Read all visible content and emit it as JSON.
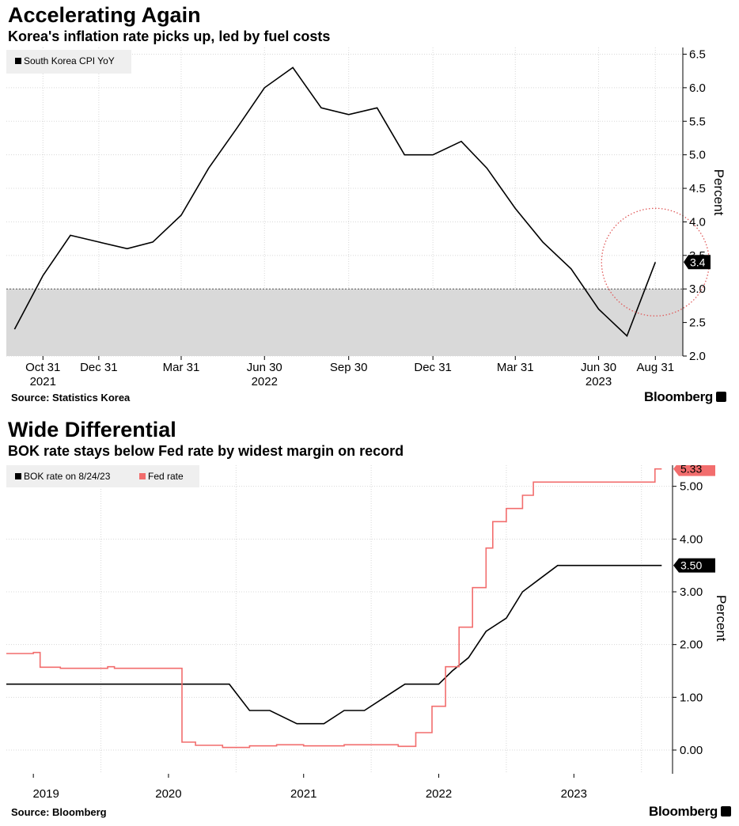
{
  "charts": [
    {
      "title": "Accelerating Again",
      "subtitle": "Korea's inflation rate picks up, led by fuel costs",
      "source": "Source: Statistics Korea",
      "brand": "Bloomberg",
      "ylabel": "Percent",
      "last_value_label": "3.4"
    },
    {
      "title": "Wide Differential",
      "subtitle": "BOK rate stays below Fed rate by widest margin on record",
      "source": "Source: Bloomberg",
      "brand": "Bloomberg",
      "ylabel": "Percent",
      "last_value_labels": [
        "5.33",
        "3.50"
      ]
    }
  ],
  "chart_data": [
    {
      "type": "line",
      "title": "Accelerating Again",
      "subtitle": "Korea's inflation rate picks up, led by fuel costs",
      "ylabel": "Percent",
      "xlabel": "",
      "ylim": [
        2.0,
        6.6
      ],
      "yticks": [
        2.0,
        2.5,
        3.0,
        3.5,
        4.0,
        4.5,
        5.0,
        5.5,
        6.0,
        6.5
      ],
      "ytick_labels": [
        "2.0",
        "2.5",
        "3.0",
        "3.5",
        "4.0",
        "4.5",
        "5.0",
        "5.5",
        "6.0",
        "6.5"
      ],
      "xtick_labels": [
        {
          "label": "Oct 31",
          "sub": "2021",
          "x": "2021-10-31"
        },
        {
          "label": "Dec 31",
          "sub": "",
          "x": "2021-12-31"
        },
        {
          "label": "Mar 31",
          "sub": "",
          "x": "2022-03-31"
        },
        {
          "label": "Jun 30",
          "sub": "2022",
          "x": "2022-06-30"
        },
        {
          "label": "Sep 30",
          "sub": "",
          "x": "2022-09-30"
        },
        {
          "label": "Dec 31",
          "sub": "",
          "x": "2022-12-31"
        },
        {
          "label": "Mar 31",
          "sub": "",
          "x": "2023-03-31"
        },
        {
          "label": "Jun 30",
          "sub": "2023",
          "x": "2023-06-30"
        },
        {
          "label": "Aug 31",
          "sub": "",
          "x": "2023-08-31"
        }
      ],
      "shaded_band": {
        "from": 2.0,
        "to": 3.0,
        "color": "#d9d9d9"
      },
      "reference_line": 3.0,
      "highlight_circle": {
        "x": "2023-08-31",
        "y": 3.4,
        "color": "#e05a5a"
      },
      "legend_position": "top-left",
      "grid": true,
      "series": [
        {
          "name": "South Korea CPI YoY",
          "color": "#000000",
          "x": [
            "2021-09-30",
            "2021-10-31",
            "2021-11-30",
            "2021-12-31",
            "2022-01-31",
            "2022-02-28",
            "2022-03-31",
            "2022-04-30",
            "2022-05-31",
            "2022-06-30",
            "2022-07-31",
            "2022-08-31",
            "2022-09-30",
            "2022-10-31",
            "2022-11-30",
            "2022-12-31",
            "2023-01-31",
            "2023-02-28",
            "2023-03-31",
            "2023-04-30",
            "2023-05-31",
            "2023-06-30",
            "2023-07-31",
            "2023-08-31"
          ],
          "values": [
            2.4,
            3.2,
            3.8,
            3.7,
            3.6,
            3.7,
            4.1,
            4.8,
            5.4,
            6.0,
            6.3,
            5.7,
            5.6,
            5.7,
            5.0,
            5.0,
            5.2,
            4.8,
            4.2,
            3.7,
            3.3,
            2.7,
            2.3,
            3.4
          ]
        }
      ]
    },
    {
      "type": "line",
      "title": "Wide Differential",
      "subtitle": "BOK rate stays below Fed rate by widest margin on record",
      "ylabel": "Percent",
      "xlabel": "",
      "ylim": [
        -0.45,
        5.4
      ],
      "yticks": [
        0,
        1,
        2,
        3,
        4,
        5
      ],
      "ytick_labels": [
        "0.00",
        "1.00",
        "2.00",
        "3.00",
        "4.00",
        "5.00"
      ],
      "xtick_labels": [
        {
          "label": "2019",
          "x": 2019.0
        },
        {
          "label": "2020",
          "x": 2020.0
        },
        {
          "label": "2021",
          "x": 2021.0
        },
        {
          "label": "2022",
          "x": 2022.0
        },
        {
          "label": "2023",
          "x": 2023.0
        }
      ],
      "legend_position": "top-left",
      "grid": true,
      "series": [
        {
          "name": "BOK rate on 8/24/23",
          "color": "#000000",
          "x": [
            2018.8,
            2019.18,
            2019.25,
            2019.31,
            2019.45,
            2019.8,
            2020.0,
            2020.15,
            2020.3,
            2020.45,
            2020.6,
            2020.75,
            2020.95,
            2021.04,
            2021.15,
            2021.3,
            2021.45,
            2021.6,
            2021.75,
            2021.88,
            2022.0,
            2022.1,
            2022.22,
            2022.35,
            2022.5,
            2022.62,
            2022.75,
            2022.88,
            2023.0,
            2023.2,
            2023.4,
            2023.65
          ],
          "values": [
            1.25,
            1.25,
            1.25,
            1.25,
            1.25,
            1.25,
            1.25,
            1.25,
            1.25,
            1.25,
            0.75,
            0.75,
            0.5,
            0.5,
            0.5,
            0.75,
            0.75,
            1.0,
            1.25,
            1.25,
            1.25,
            1.5,
            1.75,
            2.25,
            2.5,
            3.0,
            3.25,
            3.5,
            3.5,
            3.5,
            3.5,
            3.5
          ]
        },
        {
          "name": "Fed rate",
          "color": "#f26d6d",
          "x": [
            2018.8,
            2019.0,
            2019.05,
            2019.2,
            2019.35,
            2019.55,
            2019.6,
            2019.72,
            2019.85,
            2020.1,
            2020.2,
            2020.4,
            2020.6,
            2020.8,
            2021.0,
            2021.15,
            2021.3,
            2021.5,
            2021.7,
            2021.75,
            2021.83,
            2021.9,
            2021.95,
            2022.05,
            2022.15,
            2022.25,
            2022.35,
            2022.4,
            2022.5,
            2022.62,
            2022.7,
            2022.8,
            2022.9,
            2023.0,
            2023.1,
            2023.25,
            2023.45,
            2023.5,
            2023.6,
            2023.65
          ],
          "values": [
            1.83,
            1.85,
            1.57,
            1.55,
            1.55,
            1.58,
            1.55,
            1.55,
            1.55,
            0.15,
            0.09,
            0.05,
            0.08,
            0.1,
            0.08,
            0.08,
            0.1,
            0.1,
            0.07,
            0.07,
            0.33,
            0.33,
            0.83,
            1.58,
            2.33,
            3.08,
            3.83,
            4.33,
            4.58,
            4.83,
            5.08,
            5.08,
            5.08,
            5.08,
            5.08,
            5.08,
            5.08,
            5.08,
            5.33,
            5.33
          ]
        }
      ]
    }
  ]
}
